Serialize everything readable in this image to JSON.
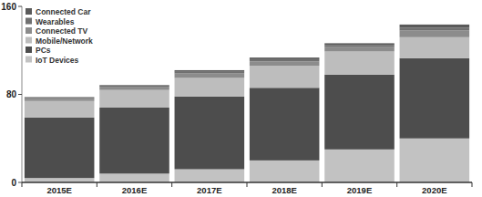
{
  "chart_data": {
    "type": "bar",
    "stacked": true,
    "legend": "top-left",
    "categories": [
      "2015E",
      "2016E",
      "2017E",
      "2018E",
      "2019E",
      "2020E"
    ],
    "ylim": [
      0,
      160
    ],
    "yticks": [
      0,
      80,
      160
    ],
    "grid": false,
    "series": [
      {
        "name": "IoT Devices",
        "color": "#c2c2c2",
        "values": [
          4,
          8,
          12,
          20,
          30,
          40
        ]
      },
      {
        "name": "PCs",
        "color": "#4d4d4d",
        "values": [
          55,
          60,
          66,
          66,
          68,
          73
        ]
      },
      {
        "name": "Mobile/Network",
        "color": "#bdbdbd",
        "values": [
          15,
          16,
          17,
          20,
          21,
          19
        ]
      },
      {
        "name": "Connected TV",
        "color": "#8c8c8c",
        "values": [
          2,
          3,
          4,
          4,
          4,
          6
        ]
      },
      {
        "name": "Wearables",
        "color": "#707070",
        "values": [
          1,
          1,
          1.5,
          2,
          2,
          2.5
        ]
      },
      {
        "name": "Connected Car",
        "color": "#5a5a5a",
        "values": [
          0.5,
          0.5,
          1.5,
          1.5,
          1.5,
          3
        ]
      }
    ]
  }
}
